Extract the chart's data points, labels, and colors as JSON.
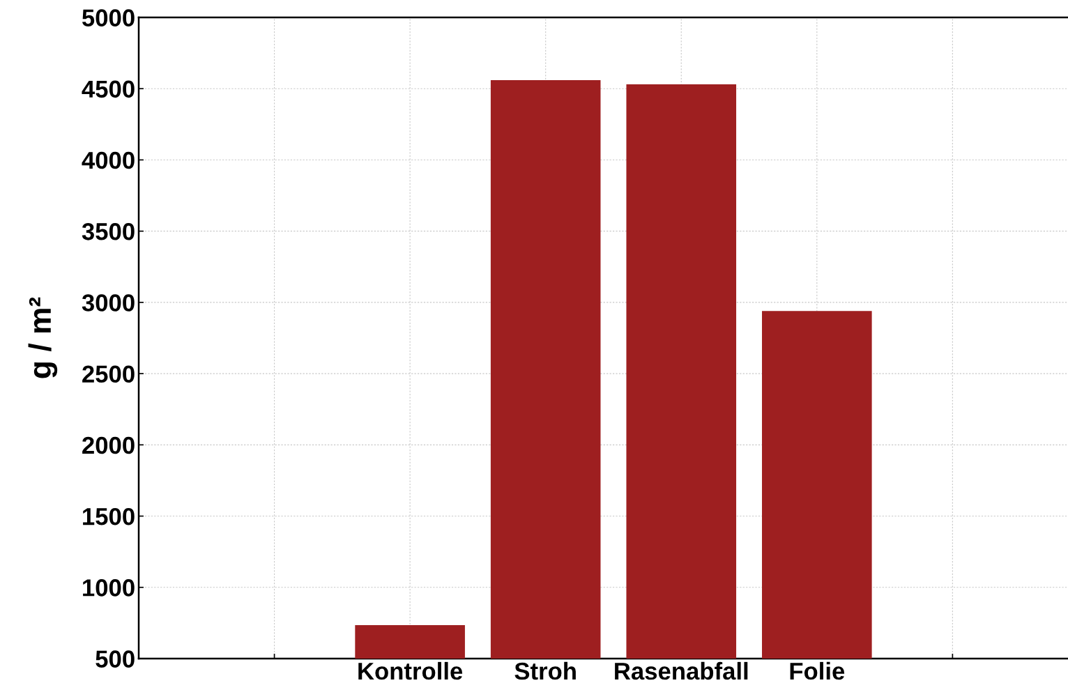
{
  "chart_data": {
    "type": "bar",
    "ylabel": "g / m²",
    "categories": [
      null,
      "Kontrolle",
      "Stroh",
      "Rasenabfall",
      "Folie",
      null
    ],
    "values": [
      null,
      735,
      4560,
      4530,
      2940,
      null
    ],
    "color": "#9e1f20",
    "ylim": [
      500,
      5000
    ],
    "yticks": [
      500,
      1000,
      1500,
      2000,
      2500,
      3000,
      3500,
      4000,
      4500,
      5000
    ],
    "grid": true
  }
}
